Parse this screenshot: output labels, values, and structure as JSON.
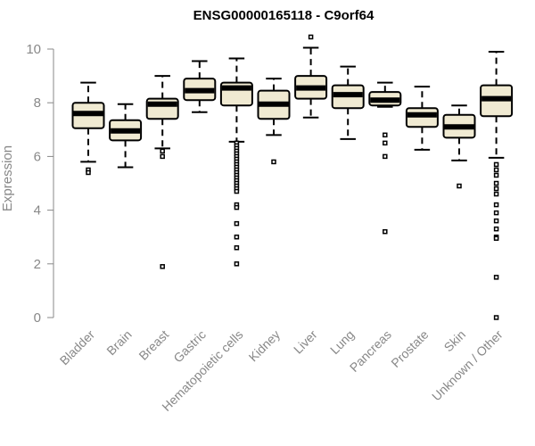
{
  "chart_data": {
    "type": "box",
    "title": "ENSG00000165118 - C9orf64",
    "ylabel": "Expression",
    "ylim": [
      0,
      10
    ],
    "yticks": [
      "0",
      "2",
      "4",
      "6",
      "8",
      "10"
    ],
    "box_fill": "#f0ead2",
    "categories": [
      "Bladder",
      "Brain",
      "Breast",
      "Gastric",
      "Hematopoietic cells",
      "Kidney",
      "Liver",
      "Lung",
      "Pancreas",
      "Prostate",
      "Skin",
      "Unknown / Other"
    ],
    "series": [
      {
        "whisker_low": 5.8,
        "q1": 7.05,
        "median": 7.6,
        "q3": 8.0,
        "whisker_high": 8.75,
        "outliers": [
          5.5,
          5.4
        ]
      },
      {
        "whisker_low": 5.6,
        "q1": 6.6,
        "median": 6.95,
        "q3": 7.35,
        "whisker_high": 7.95,
        "outliers": []
      },
      {
        "whisker_low": 6.3,
        "q1": 7.4,
        "median": 7.95,
        "q3": 8.15,
        "whisker_high": 9.0,
        "outliers": [
          6.2,
          6.0,
          1.9
        ]
      },
      {
        "whisker_low": 7.65,
        "q1": 8.1,
        "median": 8.45,
        "q3": 8.9,
        "whisker_high": 9.55,
        "outliers": []
      },
      {
        "whisker_low": 6.55,
        "q1": 7.9,
        "median": 8.55,
        "q3": 8.75,
        "whisker_high": 9.65,
        "outliers": [
          6.5,
          6.4,
          6.3,
          6.2,
          6.1,
          6.0,
          5.9,
          5.8,
          5.7,
          5.6,
          5.5,
          5.4,
          5.3,
          5.2,
          5.1,
          5.0,
          4.9,
          4.8,
          4.7,
          4.2,
          4.1,
          3.5,
          3.0,
          2.6,
          2.0
        ]
      },
      {
        "whisker_low": 6.8,
        "q1": 7.4,
        "median": 7.95,
        "q3": 8.45,
        "whisker_high": 8.9,
        "outliers": [
          5.8
        ]
      },
      {
        "whisker_low": 7.45,
        "q1": 8.15,
        "median": 8.55,
        "q3": 9.0,
        "whisker_high": 10.05,
        "outliers": [
          10.45
        ]
      },
      {
        "whisker_low": 6.65,
        "q1": 7.8,
        "median": 8.3,
        "q3": 8.65,
        "whisker_high": 9.35,
        "outliers": []
      },
      {
        "whisker_low": 7.85,
        "q1": 7.9,
        "median": 8.1,
        "q3": 8.4,
        "whisker_high": 8.75,
        "outliers": [
          6.8,
          6.5,
          6.0,
          3.2
        ]
      },
      {
        "whisker_low": 6.25,
        "q1": 7.1,
        "median": 7.55,
        "q3": 7.8,
        "whisker_high": 8.6,
        "outliers": []
      },
      {
        "whisker_low": 5.85,
        "q1": 6.7,
        "median": 7.1,
        "q3": 7.55,
        "whisker_high": 7.9,
        "outliers": [
          4.9
        ]
      },
      {
        "whisker_low": 5.95,
        "q1": 7.5,
        "median": 8.15,
        "q3": 8.65,
        "whisker_high": 9.9,
        "outliers": [
          5.7,
          5.5,
          5.3,
          5.0,
          4.8,
          4.6,
          4.2,
          3.9,
          3.6,
          3.3,
          3.0,
          2.95,
          1.5,
          0.0
        ]
      }
    ]
  }
}
